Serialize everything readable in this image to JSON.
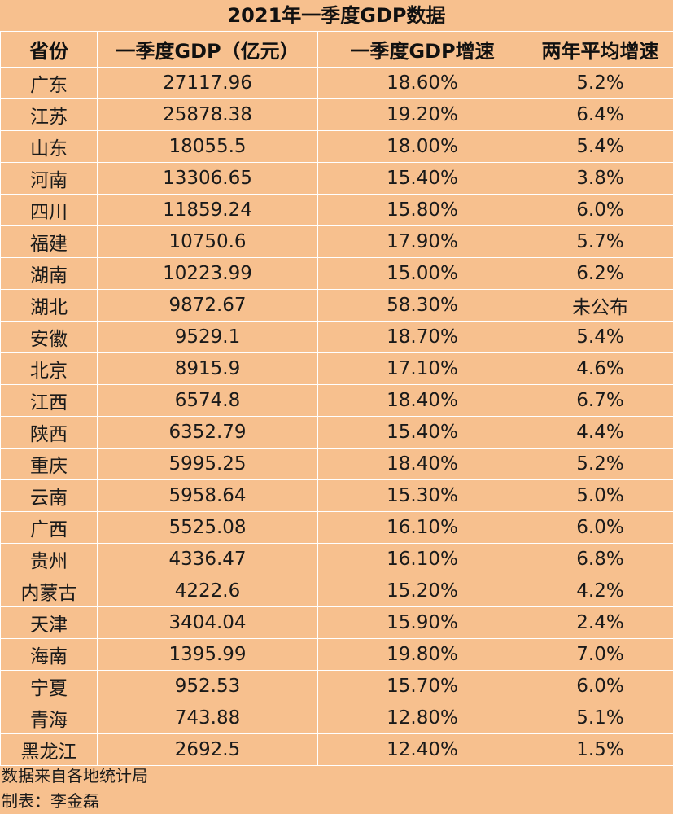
{
  "chart_data": {
    "type": "table",
    "title": "2021年一季度GDP数据",
    "columns": [
      "省份",
      "一季度GDP（亿元）",
      "一季度GDP增速",
      "两年平均增速"
    ],
    "rows": [
      [
        "广东",
        "27117.96",
        "18.60%",
        "5.2%"
      ],
      [
        "江苏",
        "25878.38",
        "19.20%",
        "6.4%"
      ],
      [
        "山东",
        "18055.5",
        "18.00%",
        "5.4%"
      ],
      [
        "河南",
        "13306.65",
        "15.40%",
        "3.8%"
      ],
      [
        "四川",
        "11859.24",
        "15.80%",
        "6.0%"
      ],
      [
        "福建",
        "10750.6",
        "17.90%",
        "5.7%"
      ],
      [
        "湖南",
        "10223.99",
        "15.00%",
        "6.2%"
      ],
      [
        "湖北",
        "9872.67",
        "58.30%",
        "未公布"
      ],
      [
        "安徽",
        "9529.1",
        "18.70%",
        "5.4%"
      ],
      [
        "北京",
        "8915.9",
        "17.10%",
        "4.6%"
      ],
      [
        "江西",
        "6574.8",
        "18.40%",
        "6.7%"
      ],
      [
        "陕西",
        "6352.79",
        "15.40%",
        "4.4%"
      ],
      [
        "重庆",
        "5995.25",
        "18.40%",
        "5.2%"
      ],
      [
        "云南",
        "5958.64",
        "15.30%",
        "5.0%"
      ],
      [
        "广西",
        "5525.08",
        "16.10%",
        "6.0%"
      ],
      [
        "贵州",
        "4336.47",
        "16.10%",
        "6.8%"
      ],
      [
        "内蒙古",
        "4222.6",
        "15.20%",
        "4.2%"
      ],
      [
        "天津",
        "3404.04",
        "15.90%",
        "2.4%"
      ],
      [
        "海南",
        "1395.99",
        "19.80%",
        "7.0%"
      ],
      [
        "宁夏",
        "952.53",
        "15.70%",
        "6.0%"
      ],
      [
        "青海",
        "743.88",
        "12.80%",
        "5.1%"
      ],
      [
        "黑龙江",
        "2692.5",
        "12.40%",
        "1.5%"
      ]
    ]
  },
  "footer": {
    "source": "数据来自各地统计局",
    "author": "制表：李金磊"
  },
  "colors": {
    "background": "#f7c08e",
    "grid": "#ffffff",
    "text": "#1a1a1a"
  }
}
